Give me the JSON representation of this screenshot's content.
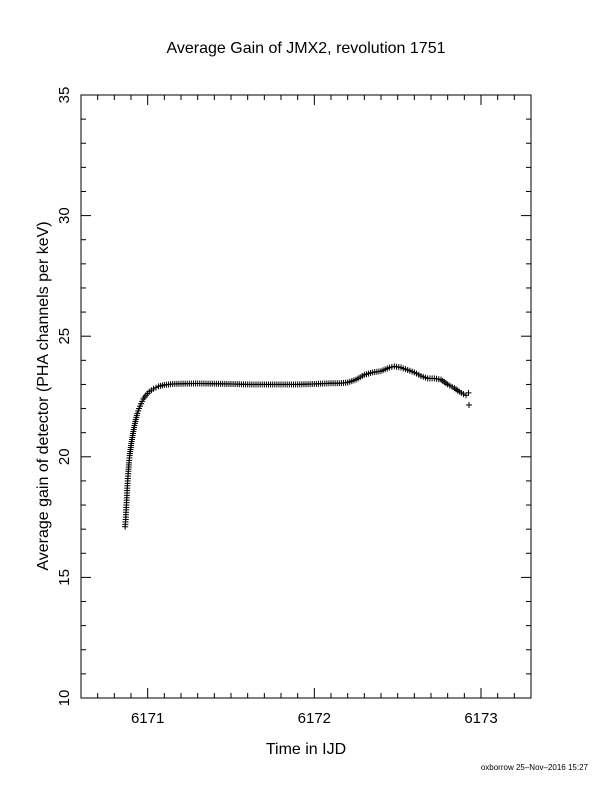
{
  "chart_data": {
    "type": "scatter",
    "title": "Average Gain of JMX2, revolution 1751",
    "xlabel": "Time in IJD",
    "ylabel": "Average gain of detector (PHA channels per keV)",
    "xlim": [
      6170.6,
      6173.3
    ],
    "ylim": [
      10,
      35
    ],
    "x_major_ticks": [
      6171,
      6172,
      6173
    ],
    "x_tick_labels": [
      "6171",
      "6172",
      "6173"
    ],
    "x_minor_step": 0.1,
    "y_major_ticks": [
      10,
      15,
      20,
      25,
      30,
      35
    ],
    "y_tick_labels": [
      "10",
      "15",
      "20",
      "25",
      "30",
      "35"
    ],
    "y_minor_step": 1,
    "grid": false,
    "legend": "none",
    "marker": "plus",
    "color": "#000000",
    "points": [
      [
        6170.865,
        17.1
      ],
      [
        6170.868,
        17.4
      ],
      [
        6170.871,
        17.8
      ],
      [
        6170.874,
        18.2
      ],
      [
        6170.877,
        18.6
      ],
      [
        6170.88,
        19.0
      ],
      [
        6170.884,
        19.4
      ],
      [
        6170.888,
        19.75
      ],
      [
        6170.892,
        20.05
      ],
      [
        6170.897,
        20.3
      ],
      [
        6170.902,
        20.55
      ],
      [
        6170.908,
        20.8
      ],
      [
        6170.914,
        21.05
      ],
      [
        6170.921,
        21.3
      ],
      [
        6170.929,
        21.55
      ],
      [
        6170.938,
        21.8
      ],
      [
        6170.948,
        22.0
      ],
      [
        6170.96,
        22.2
      ],
      [
        6170.974,
        22.4
      ],
      [
        6170.99,
        22.55
      ],
      [
        6171.01,
        22.7
      ],
      [
        6171.035,
        22.82
      ],
      [
        6171.065,
        22.92
      ],
      [
        6171.1,
        22.98
      ],
      [
        6171.15,
        23.02
      ],
      [
        6171.2,
        23.03
      ],
      [
        6171.3,
        23.04
      ],
      [
        6171.4,
        23.03
      ],
      [
        6171.5,
        23.02
      ],
      [
        6171.6,
        23.0
      ],
      [
        6171.7,
        23.0
      ],
      [
        6171.8,
        23.0
      ],
      [
        6171.9,
        23.0
      ],
      [
        6172.0,
        23.02
      ],
      [
        6172.1,
        23.05
      ],
      [
        6172.15,
        23.05
      ],
      [
        6172.2,
        23.08
      ],
      [
        6172.25,
        23.2
      ],
      [
        6172.3,
        23.4
      ],
      [
        6172.35,
        23.5
      ],
      [
        6172.4,
        23.55
      ],
      [
        6172.45,
        23.7
      ],
      [
        6172.48,
        23.75
      ],
      [
        6172.52,
        23.7
      ],
      [
        6172.56,
        23.6
      ],
      [
        6172.6,
        23.5
      ],
      [
        6172.64,
        23.35
      ],
      [
        6172.68,
        23.25
      ],
      [
        6172.72,
        23.25
      ],
      [
        6172.76,
        23.2
      ],
      [
        6172.8,
        23.0
      ],
      [
        6172.84,
        22.85
      ],
      [
        6172.87,
        22.7
      ],
      [
        6172.895,
        22.6
      ],
      [
        6172.91,
        22.55
      ],
      [
        6172.925,
        22.65
      ],
      [
        6172.928,
        22.15
      ]
    ]
  },
  "footer": {
    "credit": "oxborrow 25–Nov–2016 15:27"
  }
}
